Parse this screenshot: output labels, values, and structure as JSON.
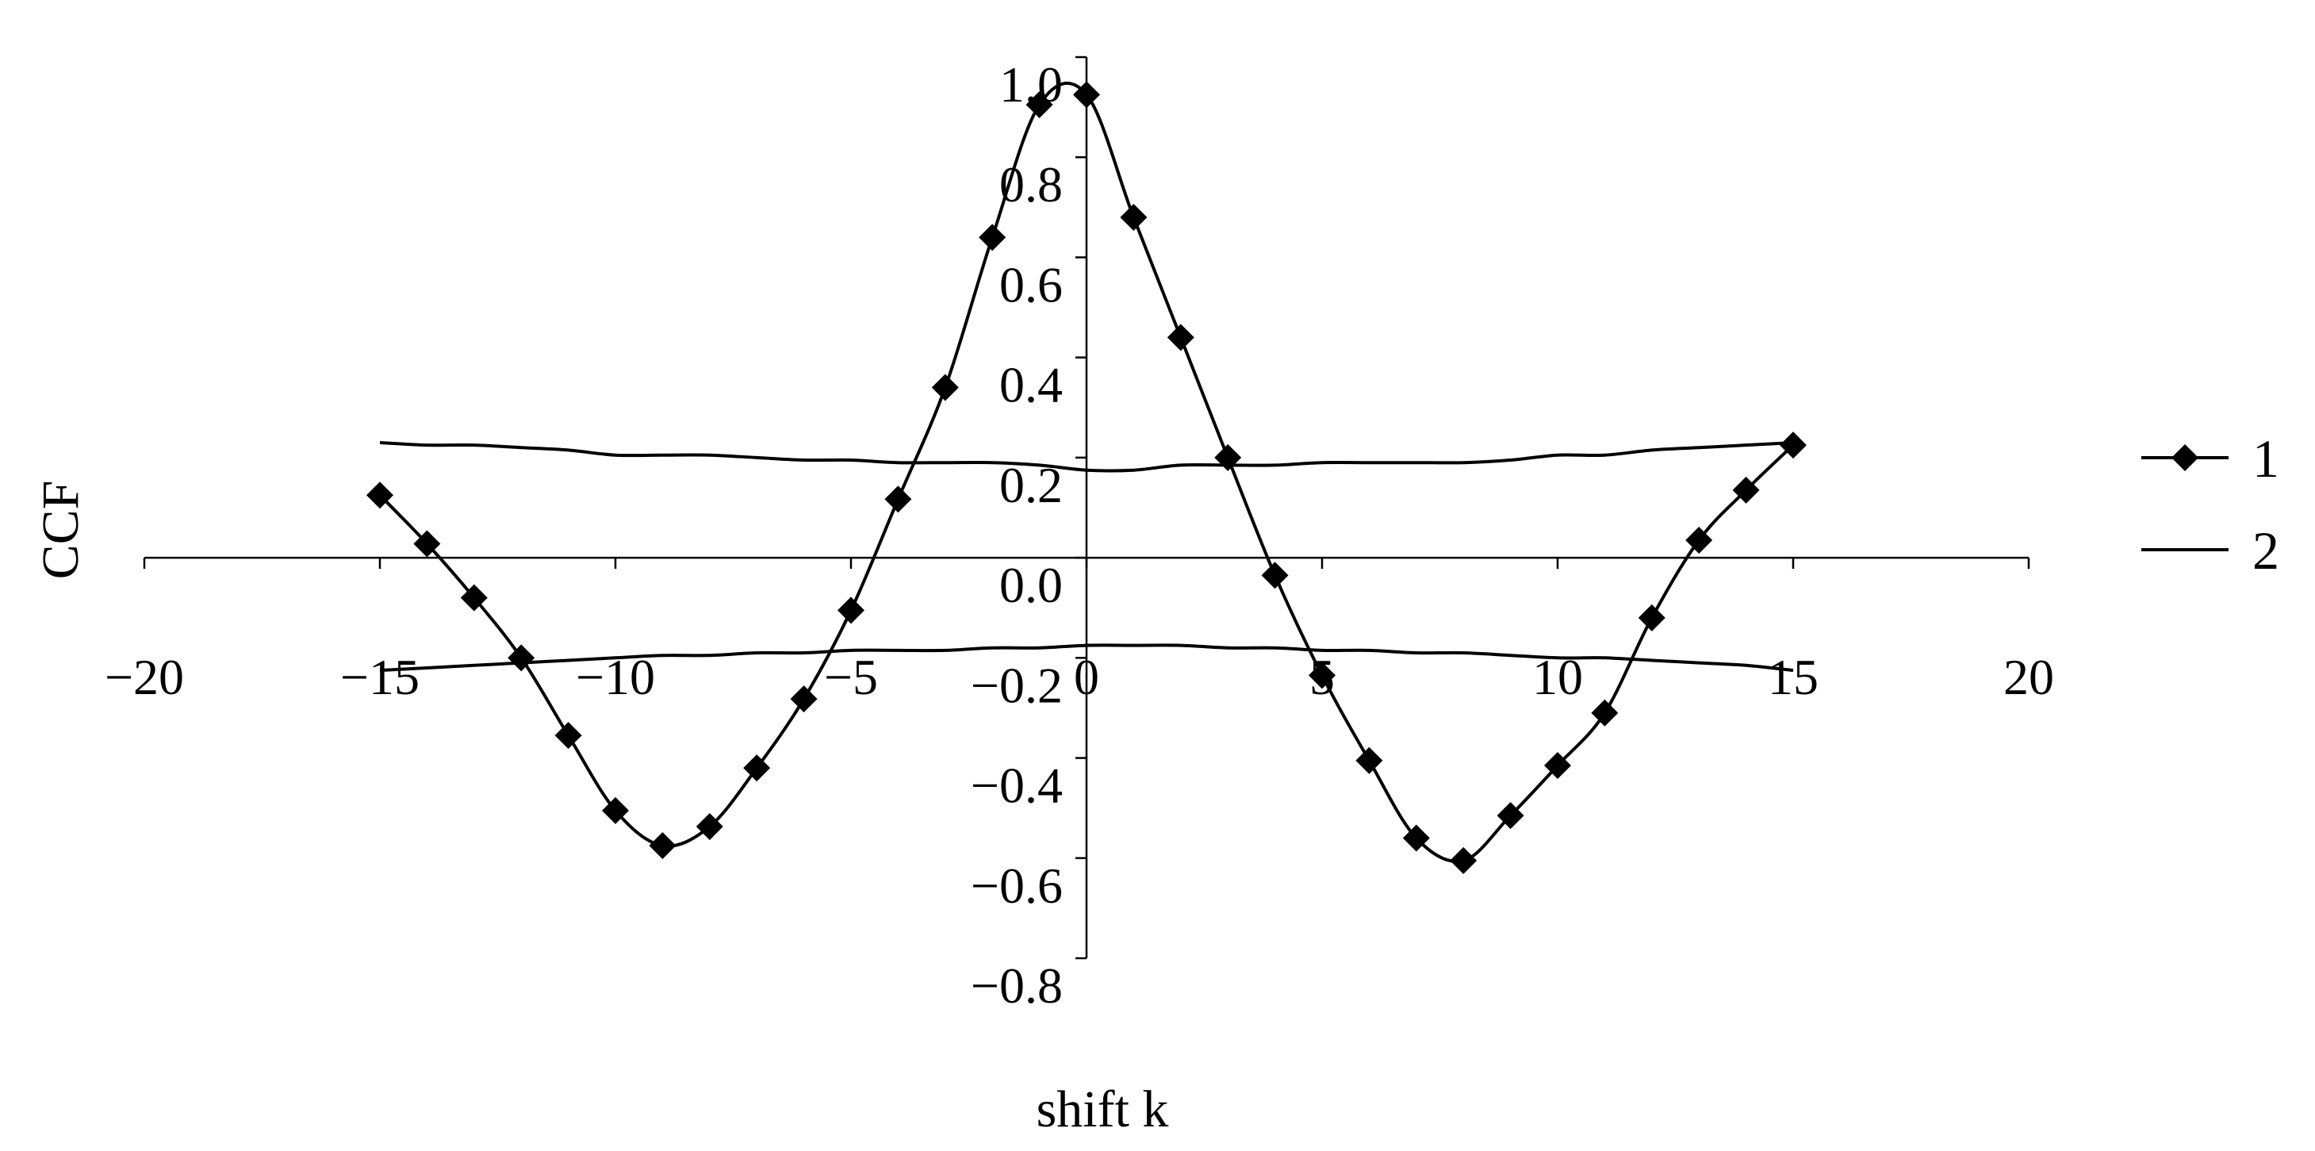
{
  "chart_data": {
    "type": "line",
    "title": "",
    "xlabel": "shift k",
    "ylabel": "CCF",
    "xlim": [
      -20,
      20
    ],
    "ylim": [
      -0.8,
      1.0
    ],
    "x_ticks": [
      -20,
      -15,
      -10,
      -5,
      0,
      5,
      10,
      15,
      20
    ],
    "x_tick_labels": [
      "−20",
      "−15",
      "−10",
      "−5",
      "0",
      "5",
      "10",
      "15",
      "20"
    ],
    "y_ticks": [
      -0.8,
      -0.6,
      -0.4,
      -0.2,
      0.0,
      0.2,
      0.4,
      0.6,
      0.8,
      1.0
    ],
    "y_tick_labels": [
      "−0.8",
      "−0.6",
      "−0.4",
      "−0.2",
      "0.0",
      "0.2",
      "0.4",
      "0.6",
      "0.8",
      "1.0"
    ],
    "grid": false,
    "legend_position": "right",
    "colors": {
      "line": "#000000",
      "background": "#ffffff"
    },
    "series": [
      {
        "name": "1",
        "marker": "diamond",
        "x": [
          -15,
          -14,
          -13,
          -12,
          -11,
          -10,
          -9,
          -8,
          -7,
          -6,
          -5,
          -4,
          -3,
          -2,
          -1,
          0,
          1,
          2,
          3,
          4,
          5,
          6,
          7,
          8,
          9,
          10,
          11,
          12,
          13,
          14,
          15
        ],
        "y": [
          0.125,
          0.028,
          -0.08,
          -0.2,
          -0.355,
          -0.505,
          -0.575,
          -0.537,
          -0.42,
          -0.282,
          -0.105,
          0.117,
          0.34,
          0.64,
          0.905,
          0.925,
          0.68,
          0.44,
          0.2,
          -0.035,
          -0.235,
          -0.405,
          -0.56,
          -0.605,
          -0.515,
          -0.415,
          -0.31,
          -0.12,
          0.035,
          0.135,
          0.225
        ]
      },
      {
        "name": "2",
        "marker": "none",
        "bands": [
          {
            "x": [
              -15,
              -14,
              -13,
              -12,
              -11,
              -10,
              -9,
              -8,
              -7,
              -6,
              -5,
              -4,
              -3,
              -2,
              -1,
              0,
              1,
              2,
              3,
              4,
              5,
              6,
              7,
              8,
              9,
              10,
              11,
              12,
              13,
              14,
              15
            ],
            "y": [
              0.23,
              0.225,
              0.225,
              0.22,
              0.215,
              0.205,
              0.205,
              0.205,
              0.2,
              0.195,
              0.195,
              0.19,
              0.19,
              0.19,
              0.185,
              0.175,
              0.175,
              0.185,
              0.185,
              0.185,
              0.19,
              0.19,
              0.19,
              0.19,
              0.195,
              0.205,
              0.205,
              0.215,
              0.22,
              0.225,
              0.23
            ]
          },
          {
            "x": [
              -15,
              -14,
              -13,
              -12,
              -11,
              -10,
              -9,
              -8,
              -7,
              -6,
              -5,
              -4,
              -3,
              -2,
              -1,
              0,
              1,
              2,
              3,
              4,
              5,
              6,
              7,
              8,
              9,
              10,
              11,
              12,
              13,
              14,
              15
            ],
            "y": [
              -0.225,
              -0.22,
              -0.215,
              -0.21,
              -0.205,
              -0.2,
              -0.195,
              -0.195,
              -0.19,
              -0.19,
              -0.185,
              -0.185,
              -0.185,
              -0.18,
              -0.18,
              -0.175,
              -0.175,
              -0.175,
              -0.18,
              -0.18,
              -0.185,
              -0.185,
              -0.19,
              -0.19,
              -0.195,
              -0.2,
              -0.2,
              -0.205,
              -0.21,
              -0.215,
              -0.225
            ]
          }
        ]
      }
    ]
  }
}
